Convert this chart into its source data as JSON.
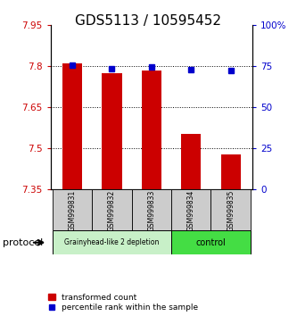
{
  "title": "GDS5113 / 10595452",
  "samples": [
    "GSM999831",
    "GSM999832",
    "GSM999833",
    "GSM999834",
    "GSM999835"
  ],
  "red_bar_values": [
    7.81,
    7.775,
    7.785,
    7.555,
    7.48
  ],
  "blue_square_values": [
    75.5,
    73.5,
    74.5,
    73.0,
    72.5
  ],
  "bar_baseline": 7.35,
  "ylim_left": [
    7.35,
    7.95
  ],
  "ylim_right": [
    0,
    100
  ],
  "yticks_left": [
    7.35,
    7.5,
    7.65,
    7.8,
    7.95
  ],
  "ytick_labels_left": [
    "7.35",
    "7.5",
    "7.65",
    "7.8",
    "7.95"
  ],
  "yticks_right": [
    0,
    25,
    50,
    75,
    100
  ],
  "ytick_labels_right": [
    "0",
    "25",
    "50",
    "75",
    "100%"
  ],
  "hgrid_values": [
    7.5,
    7.65,
    7.8
  ],
  "group1_samples": [
    0,
    1,
    2
  ],
  "group2_samples": [
    3,
    4
  ],
  "group1_label": "Grainyhead-like 2 depletion",
  "group2_label": "control",
  "group1_color": "#c8f0c8",
  "group2_color": "#44dd44",
  "protocol_label": "protocol",
  "legend_red_label": "transformed count",
  "legend_blue_label": "percentile rank within the sample",
  "bar_color": "#cc0000",
  "square_color": "#0000cc",
  "bar_width": 0.5,
  "ylabel_left_color": "#cc0000",
  "ylabel_right_color": "#0000cc",
  "title_fontsize": 11,
  "tick_fontsize": 7.5,
  "sample_box_color": "#cccccc"
}
